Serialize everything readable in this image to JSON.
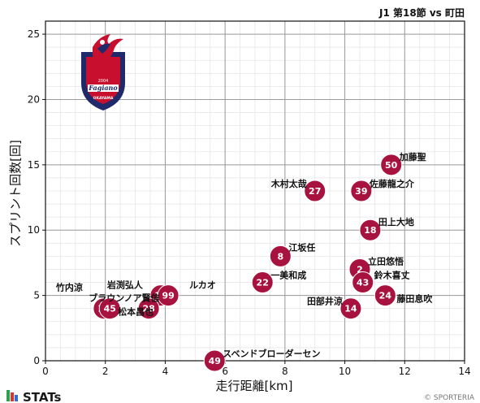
{
  "header": {
    "title": "J1 第18節 vs 町田"
  },
  "footer": {
    "brand": "STATs",
    "copyright": "© SPORTERIA"
  },
  "logo": {
    "text": "Fagiano OKAYAMA",
    "year": "2004"
  },
  "colors": {
    "point": "#a8123e",
    "logo_navy": "#1f2a6b",
    "logo_red": "#c8102e"
  },
  "chart_data": {
    "type": "scatter",
    "title": "J1 第18節 vs 町田",
    "xlabel": "走行距離[km]",
    "ylabel": "スプリント回数[回]",
    "xlim": [
      0,
      14
    ],
    "ylim": [
      0,
      26
    ],
    "xticks": [
      0,
      2,
      4,
      6,
      8,
      10,
      12,
      14
    ],
    "yticks": [
      0,
      5,
      10,
      15,
      20,
      25
    ],
    "grid": true,
    "points": [
      {
        "number": "50",
        "name": "加藤聖",
        "x": 11.55,
        "y": 15
      },
      {
        "number": "27",
        "name": "木村太哉",
        "x": 9.0,
        "y": 13
      },
      {
        "number": "39",
        "name": "佐藤龍之介",
        "x": 10.55,
        "y": 13
      },
      {
        "number": "18",
        "name": "田上大地",
        "x": 10.85,
        "y": 10
      },
      {
        "number": "8",
        "name": "江坂任",
        "x": 7.85,
        "y": 8
      },
      {
        "number": "2",
        "name": "立田悠悟",
        "x": 10.5,
        "y": 7
      },
      {
        "number": "22",
        "name": "一美和成",
        "x": 7.25,
        "y": 6
      },
      {
        "number": "43",
        "name": "鈴木喜丈",
        "x": 10.6,
        "y": 6
      },
      {
        "number": "24",
        "name": "藤田息吹",
        "x": 11.35,
        "y": 5
      },
      {
        "number": "14",
        "name": "田部井涼",
        "x": 10.2,
        "y": 4
      },
      {
        "number": "19",
        "name": "岩渕弘人",
        "x": 3.85,
        "y": 5
      },
      {
        "number": "99",
        "name": "ルカオ",
        "x": 4.1,
        "y": 5
      },
      {
        "number": "15",
        "name": "竹内涼",
        "x": 1.95,
        "y": 4
      },
      {
        "number": "45",
        "name": "ブラウンノア賢信",
        "x": 2.15,
        "y": 4
      },
      {
        "number": "28",
        "name": "松本昌也",
        "x": 3.45,
        "y": 4
      },
      {
        "number": "49",
        "name": "スベンドブローダーセン",
        "x": 5.65,
        "y": 0
      }
    ]
  }
}
